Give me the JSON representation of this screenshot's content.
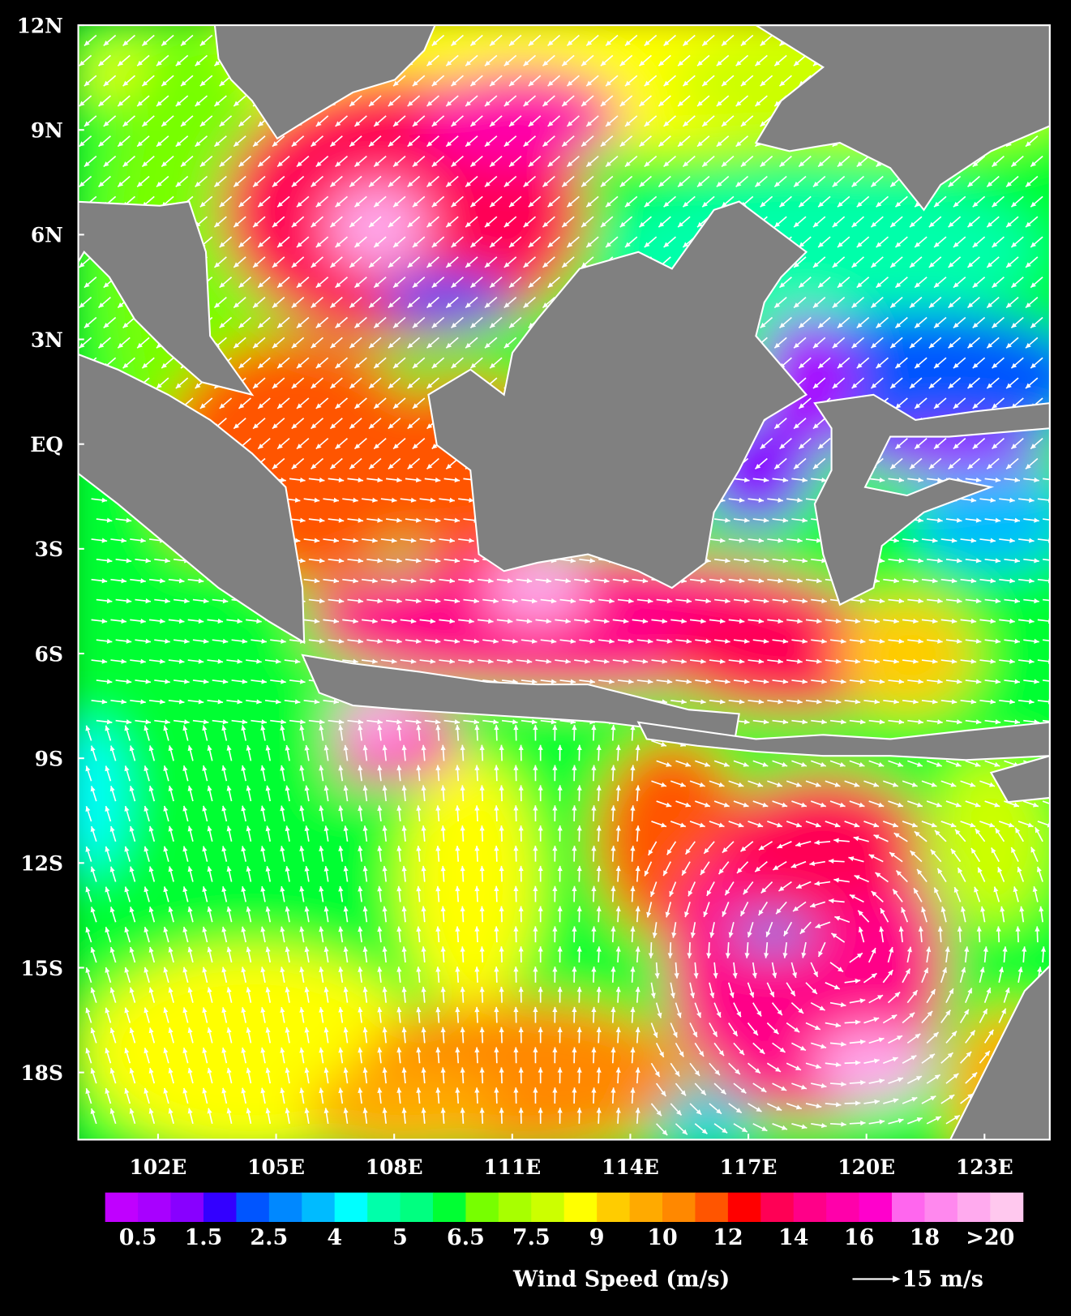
{
  "map": {
    "type": "wind-speed-vector-map",
    "lat_range": [
      "20S",
      "12N"
    ],
    "lon_range": [
      "100E",
      "124.7E"
    ],
    "lat_ticks": [
      "12N",
      "9N",
      "6N",
      "3N",
      "EQ",
      "3S",
      "6S",
      "9S",
      "12S",
      "15S",
      "18S"
    ],
    "lon_ticks": [
      "102E",
      "105E",
      "108E",
      "111E",
      "114E",
      "117E",
      "120E",
      "123E"
    ],
    "land_color": "#808080",
    "coast_color": "#ffffff",
    "vector_color": "#ffffff"
  },
  "colorbar": {
    "title": "Wind Speed (m/s)",
    "labels": [
      "0.5",
      "1.5",
      "2.5",
      "4",
      "5",
      "6.5",
      "7.5",
      "9",
      "10",
      "12",
      "14",
      "16",
      "18",
      ">20"
    ],
    "colors": [
      "#c000ff",
      "#a800ff",
      "#8800ff",
      "#3300ff",
      "#0055ff",
      "#0088ff",
      "#00bbff",
      "#00ffff",
      "#00ffaa",
      "#00ff80",
      "#00ff33",
      "#77ff00",
      "#a8ff00",
      "#ccff00",
      "#ffff00",
      "#ffcc00",
      "#ffaa00",
      "#ff8800",
      "#ff5500",
      "#ff0000",
      "#ff0055",
      "#ff0088",
      "#ff00aa",
      "#ff00cc",
      "#ff66ee",
      "#ff88ee",
      "#ffaaee",
      "#ffc8ee"
    ]
  },
  "reference_vector": {
    "label": "15 m/s"
  }
}
